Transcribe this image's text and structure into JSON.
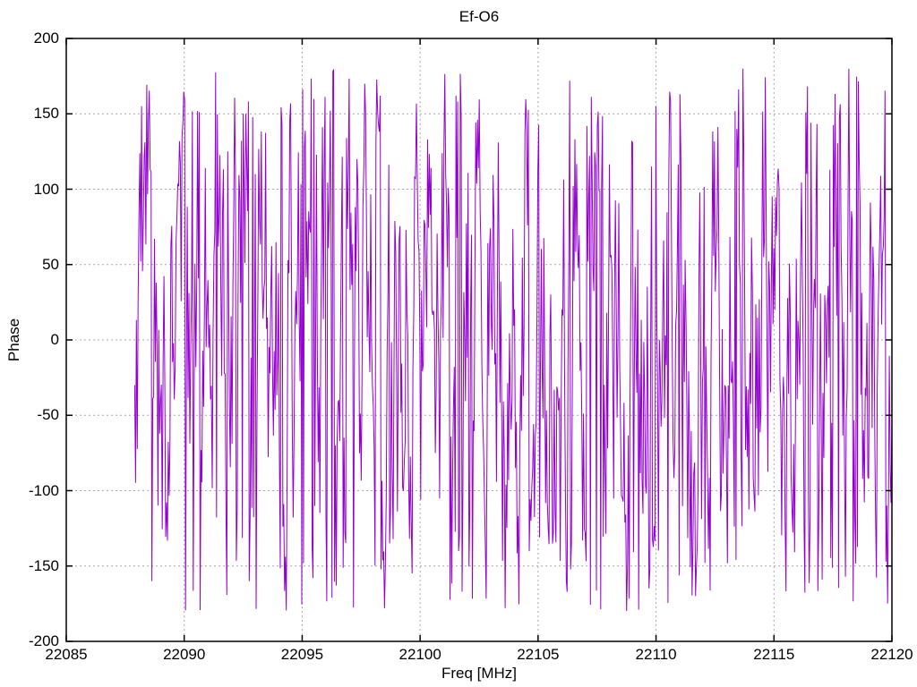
{
  "figure": {
    "background": "#ffffff"
  },
  "chart_data": {
    "type": "line",
    "title": "Ef-O6",
    "xlabel": "Freq [MHz]",
    "ylabel": "Phase",
    "xlim": [
      22085,
      22120
    ],
    "ylim": [
      -200,
      200
    ],
    "xticks": [
      22085,
      22090,
      22095,
      22100,
      22105,
      22110,
      22115,
      22120
    ],
    "xtick_labels": [
      "22085",
      "22090",
      "22095",
      "22100",
      "22105",
      "22110",
      "22115",
      "22120"
    ],
    "yticks": [
      -200,
      -150,
      -100,
      -50,
      0,
      50,
      100,
      150,
      200
    ],
    "ytick_labels": [
      "-200",
      "-150",
      "-100",
      "-50",
      "0",
      "50",
      "100",
      "150",
      "200"
    ],
    "grid": true,
    "grid_style": "dashed",
    "legend": "none",
    "line_color": "#9400d3",
    "grid_color": "#a8a8a8",
    "border_color": "#000000",
    "text_color": "#000000",
    "series": [
      {
        "name": "Ef-O6 phase",
        "style": "lines",
        "x_unit": "MHz",
        "x_start": 22087.9,
        "x_end": 22120.0,
        "n_points": 880,
        "y_wrap": [
          -180,
          180
        ],
        "noise_model": {
          "kind": "wrapped-random-walk",
          "seed": 9,
          "step_max": 125,
          "mean_level": 40,
          "mean_pull": 0.15,
          "start_y": -30
        }
      }
    ]
  }
}
